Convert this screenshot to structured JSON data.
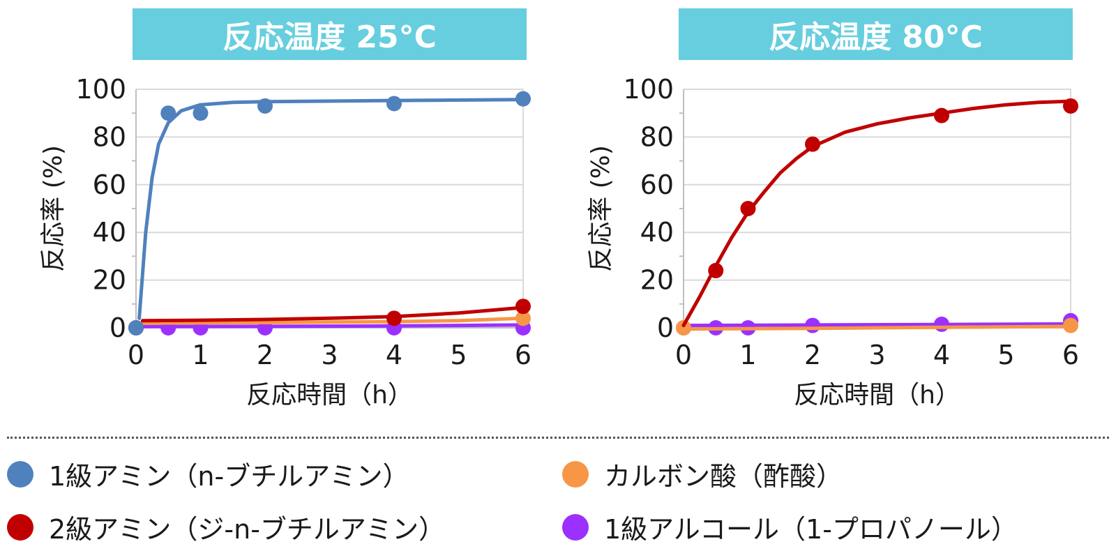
{
  "colors": {
    "title_bg": "#66cedf",
    "primary_amine": "#4f81bd",
    "secondary_amine": "#c00000",
    "carboxylic_acid": "#f79646",
    "primary_alcohol": "#9b30ff",
    "grid": "#d9d9d9"
  },
  "legend": [
    {
      "label": "1級アミン（n-ブチルアミン）",
      "color": "#4f81bd"
    },
    {
      "label": "カルボン酸（酢酸）",
      "color": "#f79646"
    },
    {
      "label": "2級アミン（ジ-n-ブチルアミン）",
      "color": "#c00000"
    },
    {
      "label": "1級アルコール（1-プロパノール）",
      "color": "#9b30ff"
    }
  ],
  "chart_data": [
    {
      "type": "scatter",
      "title": "反応温度 25°C",
      "xlabel": "反応時間（h）",
      "ylabel": "反応率 (%)",
      "xlim": [
        0,
        6
      ],
      "ylim": [
        0,
        100
      ],
      "xticks": [
        "0",
        "1",
        "2",
        "3",
        "4",
        "5",
        "6"
      ],
      "yticks": [
        "0",
        "20",
        "40",
        "60",
        "80",
        "100"
      ],
      "grid": true,
      "series": [
        {
          "name": "1級アミン（n-ブチルアミン）",
          "color": "#4f81bd",
          "points": [
            [
              0,
              0
            ],
            [
              0.5,
              90
            ],
            [
              1,
              90
            ],
            [
              2,
              93
            ],
            [
              4,
              94
            ],
            [
              6,
              96
            ]
          ],
          "curve": [
            [
              0.05,
              4
            ],
            [
              0.15,
              40
            ],
            [
              0.25,
              63
            ],
            [
              0.35,
              77
            ],
            [
              0.5,
              86
            ],
            [
              0.7,
              91
            ],
            [
              1,
              93.5
            ],
            [
              1.5,
              94.5
            ],
            [
              2,
              94.8
            ],
            [
              4,
              95.3
            ],
            [
              6,
              95.7
            ]
          ]
        },
        {
          "name": "2級アミン（ジ-n-ブチルアミン）",
          "color": "#c00000",
          "points": [
            [
              0,
              0
            ],
            [
              4,
              4
            ],
            [
              6,
              9
            ]
          ],
          "curve": [
            [
              0.1,
              3
            ],
            [
              1,
              3.2
            ],
            [
              2,
              3.5
            ],
            [
              3,
              4
            ],
            [
              4,
              4.7
            ],
            [
              5,
              6.2
            ],
            [
              6,
              8.5
            ]
          ]
        },
        {
          "name": "カルボン酸（酢酸）",
          "color": "#f79646",
          "points": [
            [
              6,
              4
            ]
          ],
          "curve": [
            [
              0.1,
              2
            ],
            [
              2,
              2.2
            ],
            [
              4,
              2.6
            ],
            [
              5,
              3
            ],
            [
              6,
              4
            ]
          ]
        },
        {
          "name": "1級アルコール（1-プロパノール）",
          "color": "#9b30ff",
          "points": [
            [
              0,
              0
            ],
            [
              0.5,
              0
            ],
            [
              1,
              0
            ],
            [
              2,
              0
            ],
            [
              4,
              0
            ],
            [
              6,
              0
            ]
          ],
          "curve": [
            [
              0,
              0.5
            ],
            [
              2,
              0.6
            ],
            [
              4,
              0.8
            ],
            [
              6,
              1.2
            ]
          ]
        }
      ]
    },
    {
      "type": "scatter",
      "title": "反応温度 80°C",
      "xlabel": "反応時間（h）",
      "ylabel": "反応率 (%)",
      "xlim": [
        0,
        6
      ],
      "ylim": [
        0,
        100
      ],
      "xticks": [
        "0",
        "1",
        "2",
        "3",
        "4",
        "5",
        "6"
      ],
      "yticks": [
        "0",
        "20",
        "40",
        "60",
        "80",
        "100"
      ],
      "grid": true,
      "series": [
        {
          "name": "2級アミン（ジ-n-ブチルアミン）",
          "color": "#c00000",
          "points": [
            [
              0.5,
              24
            ],
            [
              1,
              50
            ],
            [
              2,
              77
            ],
            [
              4,
              89
            ],
            [
              6,
              93
            ]
          ],
          "curve": [
            [
              0,
              1
            ],
            [
              0.25,
              13
            ],
            [
              0.5,
              26
            ],
            [
              0.75,
              38
            ],
            [
              1,
              48.5
            ],
            [
              1.25,
              57
            ],
            [
              1.5,
              65
            ],
            [
              1.75,
              71
            ],
            [
              2,
              76
            ],
            [
              2.5,
              82
            ],
            [
              3,
              85.5
            ],
            [
              3.5,
              88
            ],
            [
              4,
              90
            ],
            [
              4.5,
              92
            ],
            [
              5,
              93.5
            ],
            [
              5.5,
              94.5
            ],
            [
              6,
              95
            ]
          ]
        },
        {
          "name": "カルボン酸（酢酸）",
          "color": "#f79646",
          "points": [
            [
              0,
              0
            ],
            [
              6,
              1
            ]
          ],
          "curve": [
            [
              0.1,
              -0.5
            ],
            [
              2,
              -0.2
            ],
            [
              4,
              0.2
            ],
            [
              6,
              0.6
            ]
          ]
        },
        {
          "name": "1級アルコール（1-プロパノール）",
          "color": "#9b30ff",
          "points": [
            [
              0,
              0
            ],
            [
              0.5,
              0
            ],
            [
              1,
              0
            ],
            [
              2,
              1
            ],
            [
              4,
              1.5
            ],
            [
              6,
              3
            ]
          ],
          "curve": [
            [
              0,
              1
            ],
            [
              2,
              1.2
            ],
            [
              4,
              1.4
            ],
            [
              6,
              1.6
            ]
          ]
        }
      ]
    }
  ]
}
